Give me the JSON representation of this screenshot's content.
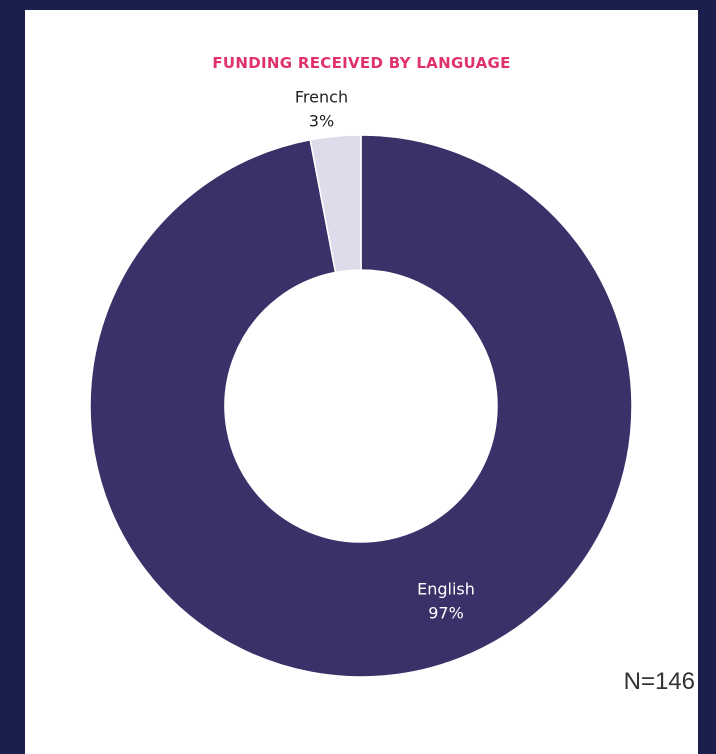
{
  "chart_data": {
    "type": "pie",
    "title": "FUNDING RECEIVED BY LANGUAGE",
    "categories": [
      "English",
      "French"
    ],
    "values": [
      97,
      3
    ],
    "value_labels": [
      "97%",
      "3%"
    ],
    "colors": [
      "#3b3169",
      "#dedcea"
    ],
    "label_colors": [
      "#ffffff",
      "#222222"
    ],
    "donut": true,
    "legend": "none"
  },
  "annotation": {
    "sample_size": "N=146"
  },
  "colors": {
    "background": "#1a1f4d",
    "card": "#ffffff",
    "title": "#e0316e"
  }
}
